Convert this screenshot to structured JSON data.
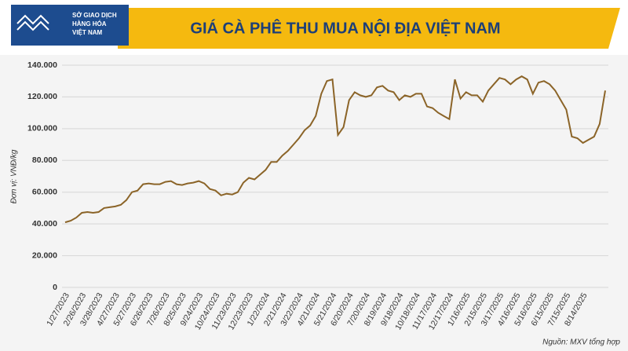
{
  "header": {
    "logo_text": [
      "SỞ GIAO DỊCH",
      "HÀNG HÓA",
      "VIỆT NAM"
    ]
  },
  "chart_data": {
    "type": "line",
    "title": "GIÁ CÀ PHÊ THU MUA NỘI ĐỊA VIỆT NAM",
    "y_label": "Đơn vị: VNĐ/kg",
    "source": "Nguồn: MXV tổng hợp",
    "categories": [
      "1/27/2023",
      null,
      null,
      "2/26/2023",
      null,
      null,
      "3/28/2023",
      null,
      null,
      "4/27/2023",
      null,
      null,
      "5/27/2023",
      null,
      null,
      "6/26/2023",
      null,
      null,
      "7/26/2023",
      null,
      null,
      "8/25/2023",
      null,
      null,
      "9/24/2023",
      null,
      null,
      "10/24/2023",
      null,
      null,
      "11/23/2023",
      null,
      null,
      "12/23/2023",
      null,
      null,
      "1/22/2024",
      null,
      null,
      "2/21/2024",
      null,
      null,
      "3/22/2024",
      null,
      null,
      "4/21/2024",
      null,
      null,
      "5/21/2024",
      null,
      null,
      "6/20/2024",
      null,
      null,
      "7/20/2024",
      null,
      null,
      "8/19/2024",
      null,
      null,
      "9/18/2024",
      null,
      null,
      "10/18/2024",
      null,
      null,
      "11/17/2024",
      null,
      null,
      "12/17/2024",
      null,
      null,
      "1/16/2025",
      null,
      null,
      "2/15/2025",
      null,
      null,
      "3/17/2025",
      null,
      null,
      "4/16/2025",
      null,
      null,
      "5/16/2025",
      null,
      null,
      "6/15/2025",
      null,
      null,
      "7/15/2025",
      null,
      null,
      "8/14/2025",
      null,
      null,
      null,
      null
    ],
    "series": [
      {
        "name": "Giá cà phê",
        "color": "#8b6428",
        "values": [
          41000,
          42000,
          44000,
          47000,
          47500,
          47000,
          47500,
          50000,
          50500,
          51000,
          52000,
          55000,
          60000,
          61000,
          65000,
          65500,
          65000,
          65000,
          66500,
          67000,
          65000,
          64500,
          65500,
          66000,
          67000,
          65500,
          62000,
          61000,
          58000,
          59000,
          58500,
          60000,
          66000,
          69000,
          68000,
          71000,
          74000,
          79000,
          79000,
          83000,
          86000,
          90000,
          94000,
          99000,
          102000,
          108000,
          122000,
          130000,
          131000,
          96000,
          101000,
          118000,
          123000,
          121000,
          120000,
          121000,
          126000,
          127000,
          124000,
          123000,
          118000,
          121000,
          120000,
          122000,
          122000,
          114000,
          113000,
          110000,
          108000,
          106000,
          131000,
          119000,
          123000,
          121000,
          121000,
          117000,
          124000,
          128000,
          132000,
          131000,
          128000,
          131000,
          133000,
          131000,
          122000,
          129000,
          130000,
          128000,
          124000,
          118000,
          112000,
          95000,
          94000,
          91000,
          93000,
          95000,
          103000,
          124000
        ]
      }
    ],
    "ylim": [
      0,
      140000
    ],
    "yticks": [
      0,
      {
        "value": 20000,
        "label": "20.000"
      },
      {
        "value": 40000,
        "label": "40.000"
      },
      {
        "value": 60000,
        "label": "60.000"
      },
      {
        "value": 80000,
        "label": "80.000"
      },
      {
        "value": 100000,
        "label": "100.000"
      },
      {
        "value": 120000,
        "label": "120.000"
      },
      {
        "value": 140000,
        "label": "140.000"
      }
    ],
    "grid": true
  }
}
